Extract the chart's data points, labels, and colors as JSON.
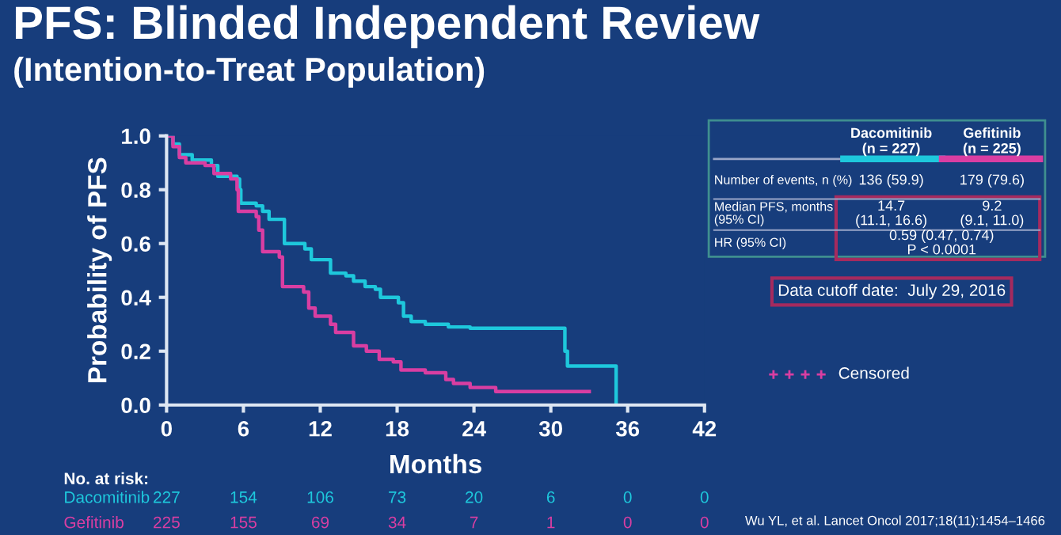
{
  "chart_data": {
    "type": "step",
    "title": "PFS: Blinded Independent Review",
    "subtitle": "(Intention-to-Treat Population)",
    "xlabel": "Months",
    "ylabel": "Probability of PFS",
    "xlim": [
      0,
      42
    ],
    "xticks": [
      0,
      6,
      12,
      18,
      24,
      30,
      36,
      42
    ],
    "ylim": [
      0,
      1
    ],
    "yticks": [
      {
        "value": 0,
        "label": "0.0"
      },
      0.2,
      0.4,
      0.6,
      0.8,
      {
        "value": 1,
        "label": "1.0"
      }
    ],
    "grid": false,
    "legend": false,
    "series": [
      {
        "name": "Dacomitinib",
        "color": "#1ec8dc",
        "x": [
          0,
          0.5,
          1,
          2,
          3.5,
          4,
          5.5,
          5.7,
          5.8,
          7,
          7.5,
          8,
          9.2,
          10.8,
          11.3,
          12.8,
          14,
          14.6,
          15.5,
          16.3,
          16.7,
          18.1,
          18.5,
          19.1,
          20.2,
          22,
          23.7,
          31.1,
          31.3,
          35.1
        ],
        "values": [
          1,
          0.97,
          0.93,
          0.91,
          0.89,
          0.85,
          0.84,
          0.8,
          0.75,
          0.74,
          0.72,
          0.69,
          0.6,
          0.58,
          0.54,
          0.49,
          0.48,
          0.46,
          0.44,
          0.43,
          0.4,
          0.38,
          0.33,
          0.31,
          0.3,
          0.29,
          0.285,
          0.2,
          0.145,
          0
        ]
      },
      {
        "name": "Gefitinib",
        "color": "#d93ea2",
        "x": [
          0,
          0.5,
          1,
          1.5,
          3,
          3.7,
          5,
          5.5,
          5.6,
          7,
          7.2,
          7.5,
          8.8,
          9.05,
          10.7,
          11.1,
          11.6,
          12.8,
          13.2,
          14.6,
          15.6,
          16.6,
          17.7,
          18.3,
          20.2,
          21.8,
          22.4,
          23.7,
          25.7,
          33
        ],
        "values": [
          1,
          0.96,
          0.92,
          0.9,
          0.89,
          0.86,
          0.84,
          0.8,
          0.72,
          0.7,
          0.65,
          0.57,
          0.55,
          0.44,
          0.42,
          0.36,
          0.33,
          0.3,
          0.27,
          0.22,
          0.2,
          0.17,
          0.16,
          0.13,
          0.12,
          0.095,
          0.08,
          0.065,
          0.05,
          0.05
        ]
      }
    ],
    "annotations": [
      "No. at risk:",
      "227",
      "154",
      "106",
      "73",
      "20",
      "6",
      "0",
      "0",
      "225",
      "155",
      "69",
      "34",
      "7",
      "1",
      "0",
      "0",
      "Dacomitinib\n(n = 227)",
      "Gefitinib\n(n = 225)",
      "Number of events, n (%)",
      "136 (59.9)",
      "179 (79.6)",
      "Median PFS, months\n(95% CI)",
      "14.7\n(11.1, 16.6)",
      "9.2\n(9.1, 11.0)",
      "HR (95% CI)",
      "0.59 (0.47, 0.74)\nP < 0.0001",
      "Data cutoff date:  July 29, 2016",
      "Censored",
      "Wu YL, et al. Lancet Oncol 2017;18(11):1454–1466"
    ]
  }
}
